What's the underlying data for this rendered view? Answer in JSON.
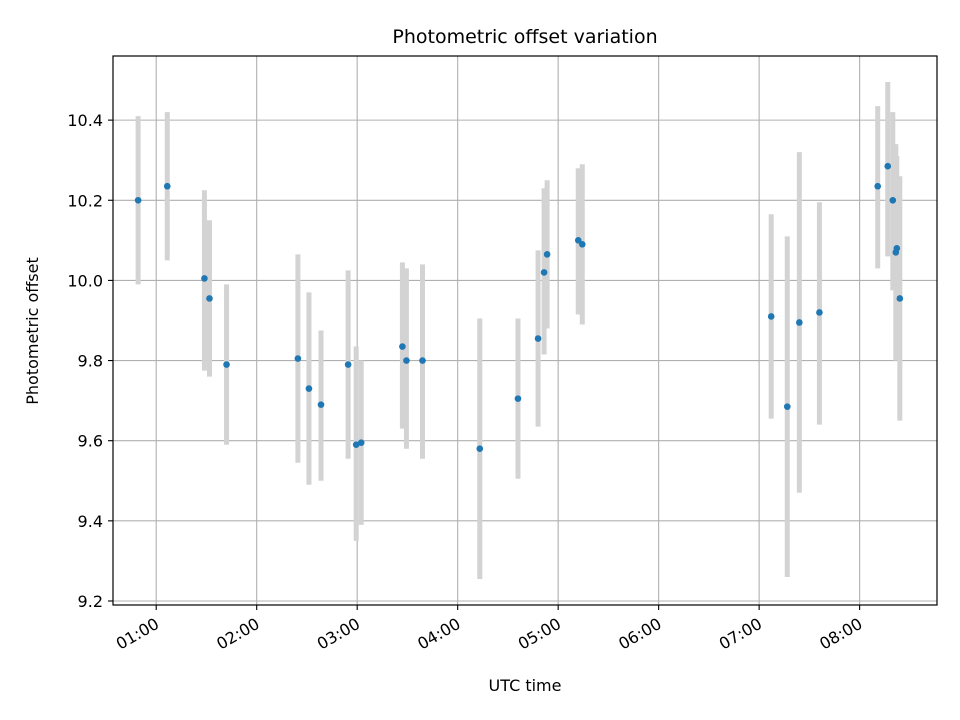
{
  "chart_data": {
    "type": "scatter",
    "title": "Photometric offset variation",
    "xlabel": "UTC time",
    "ylabel": "Photometric offset",
    "x_unit": "hours UTC",
    "xlim": [
      0.57,
      8.77
    ],
    "ylim": [
      9.19,
      10.56
    ],
    "x_ticks": [
      {
        "value": 1,
        "label": "01:00"
      },
      {
        "value": 2,
        "label": "02:00"
      },
      {
        "value": 3,
        "label": "03:00"
      },
      {
        "value": 4,
        "label": "04:00"
      },
      {
        "value": 5,
        "label": "05:00"
      },
      {
        "value": 6,
        "label": "06:00"
      },
      {
        "value": 7,
        "label": "07:00"
      },
      {
        "value": 8,
        "label": "08:00"
      }
    ],
    "y_ticks": [
      {
        "value": 9.2,
        "label": "9.2"
      },
      {
        "value": 9.4,
        "label": "9.4"
      },
      {
        "value": 9.6,
        "label": "9.6"
      },
      {
        "value": 9.8,
        "label": "9.8"
      },
      {
        "value": 10.0,
        "label": "10.0"
      },
      {
        "value": 10.2,
        "label": "10.2"
      },
      {
        "value": 10.4,
        "label": "10.4"
      }
    ],
    "grid": true,
    "marker_color": "#1f77b4",
    "errorbar_color": "#d3d3d3",
    "points": [
      {
        "x": 0.82,
        "y": 10.2,
        "lo": 9.99,
        "hi": 10.41
      },
      {
        "x": 1.11,
        "y": 10.235,
        "lo": 10.05,
        "hi": 10.42
      },
      {
        "x": 1.48,
        "y": 10.005,
        "lo": 9.775,
        "hi": 10.225
      },
      {
        "x": 1.53,
        "y": 9.955,
        "lo": 9.76,
        "hi": 10.15
      },
      {
        "x": 1.7,
        "y": 9.79,
        "lo": 9.59,
        "hi": 9.99
      },
      {
        "x": 2.41,
        "y": 9.805,
        "lo": 9.545,
        "hi": 10.065
      },
      {
        "x": 2.52,
        "y": 9.73,
        "lo": 9.49,
        "hi": 9.97
      },
      {
        "x": 2.64,
        "y": 9.69,
        "lo": 9.5,
        "hi": 9.875
      },
      {
        "x": 2.91,
        "y": 9.79,
        "lo": 9.555,
        "hi": 10.025
      },
      {
        "x": 2.99,
        "y": 9.59,
        "lo": 9.35,
        "hi": 9.835
      },
      {
        "x": 3.04,
        "y": 9.595,
        "lo": 9.39,
        "hi": 9.8
      },
      {
        "x": 3.45,
        "y": 9.835,
        "lo": 9.63,
        "hi": 10.045
      },
      {
        "x": 3.49,
        "y": 9.8,
        "lo": 9.58,
        "hi": 10.03
      },
      {
        "x": 3.65,
        "y": 9.8,
        "lo": 9.555,
        "hi": 10.04
      },
      {
        "x": 4.22,
        "y": 9.58,
        "lo": 9.255,
        "hi": 9.905
      },
      {
        "x": 4.6,
        "y": 9.705,
        "lo": 9.505,
        "hi": 9.905
      },
      {
        "x": 4.8,
        "y": 9.855,
        "lo": 9.635,
        "hi": 10.075
      },
      {
        "x": 4.86,
        "y": 10.02,
        "lo": 9.815,
        "hi": 10.23
      },
      {
        "x": 4.89,
        "y": 10.065,
        "lo": 9.88,
        "hi": 10.25
      },
      {
        "x": 5.2,
        "y": 10.1,
        "lo": 9.915,
        "hi": 10.28
      },
      {
        "x": 5.24,
        "y": 10.09,
        "lo": 9.89,
        "hi": 10.29
      },
      {
        "x": 7.12,
        "y": 9.91,
        "lo": 9.655,
        "hi": 10.165
      },
      {
        "x": 7.28,
        "y": 9.685,
        "lo": 9.26,
        "hi": 10.11
      },
      {
        "x": 7.4,
        "y": 9.895,
        "lo": 9.47,
        "hi": 10.32
      },
      {
        "x": 7.6,
        "y": 9.92,
        "lo": 9.64,
        "hi": 10.195
      },
      {
        "x": 8.18,
        "y": 10.235,
        "lo": 10.03,
        "hi": 10.435
      },
      {
        "x": 8.28,
        "y": 10.285,
        "lo": 10.06,
        "hi": 10.495
      },
      {
        "x": 8.33,
        "y": 10.2,
        "lo": 9.975,
        "hi": 10.42
      },
      {
        "x": 8.36,
        "y": 10.07,
        "lo": 9.8,
        "hi": 10.34
      },
      {
        "x": 8.37,
        "y": 10.08,
        "lo": 9.85,
        "hi": 10.31
      },
      {
        "x": 8.4,
        "y": 9.955,
        "lo": 9.65,
        "hi": 10.26
      }
    ]
  }
}
